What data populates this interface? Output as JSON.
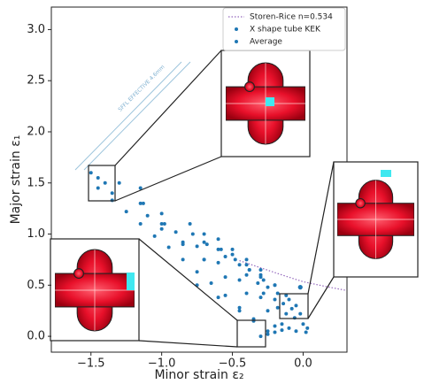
{
  "chart_data": {
    "type": "scatter",
    "xlabel": "Minor strain ε₂",
    "ylabel": "Major strain ε₁",
    "xlim": [
      -1.78,
      0.31
    ],
    "ylim": [
      -0.155,
      3.22
    ],
    "xticks": [
      {
        "value": -1.5,
        "label": "−1.5"
      },
      {
        "value": -1.0,
        "label": "−1.0"
      },
      {
        "value": -0.5,
        "label": "−0.5"
      },
      {
        "value": 0,
        "label": "0.0"
      }
    ],
    "yticks": [
      {
        "value": 0,
        "label": "0.0"
      },
      {
        "value": 0.5,
        "label": "0.5"
      },
      {
        "value": 1.0,
        "label": "1.0"
      },
      {
        "value": 1.5,
        "label": "1.5"
      },
      {
        "value": 2.0,
        "label": "2.0"
      },
      {
        "value": 2.5,
        "label": "2.5"
      },
      {
        "value": 3.0,
        "label": "3.0"
      }
    ],
    "grid": false,
    "legend": "upper right",
    "annotation": "SFFL EFFECTIVE 4.6mm",
    "series": [
      {
        "name": "Storen-Rice n=0.534",
        "type": "line",
        "color": "#9467bd",
        "x": [
          -0.45,
          -0.3,
          -0.15,
          0,
          0.15,
          0.3
        ],
        "y": [
          0.74,
          0.67,
          0.6,
          0.534,
          0.49,
          0.45
        ]
      },
      {
        "name": "X shape tube KEK",
        "type": "scatter",
        "color": "#1f77b4",
        "x": [
          -1.45,
          -1.35,
          -1.25,
          -1.15,
          -1.05,
          -0.95,
          -0.85,
          -0.75,
          -0.65,
          -0.55,
          -0.45,
          -0.35,
          -0.25,
          -1.3,
          -1.15,
          -1.0,
          -0.85,
          -0.7,
          -0.55,
          -0.4,
          -0.25,
          -0.15,
          -1.45,
          -1.4,
          -1.5,
          -1.35,
          -1.15,
          -1.13,
          -1.1,
          -1.0,
          -0.85,
          -0.7,
          -1.0,
          -0.98,
          -0.9,
          -0.75,
          -0.6,
          -0.45,
          -0.3,
          -0.8,
          -0.78,
          -0.7,
          -0.55,
          -0.4,
          -0.28,
          -0.18,
          -0.7,
          -0.68,
          -0.6,
          -0.45,
          -0.32,
          -0.2,
          -0.12,
          -0.6,
          -0.58,
          -0.5,
          -0.38,
          -0.25,
          -0.14,
          -0.06,
          -0.5,
          -0.48,
          -0.4,
          -0.3,
          -0.18,
          -0.08,
          0.0,
          -0.4,
          -0.38,
          -0.3,
          -0.2,
          -0.1,
          -0.02,
          0.03,
          -0.3,
          -0.28,
          -0.2,
          -0.12,
          -0.05,
          -0.3,
          -0.25,
          -0.2,
          -0.15,
          -0.1,
          -0.05,
          0.02,
          -0.75,
          -0.6,
          -0.45,
          -0.35,
          -0.2
        ],
        "y": [
          1.45,
          1.33,
          1.22,
          1.1,
          0.98,
          0.87,
          0.75,
          0.63,
          0.52,
          0.4,
          0.28,
          0.17,
          0.05,
          1.5,
          1.3,
          1.1,
          0.92,
          0.75,
          0.58,
          0.42,
          0.25,
          0.12,
          1.55,
          1.5,
          1.6,
          1.4,
          1.45,
          1.3,
          1.18,
          1.05,
          0.9,
          0.75,
          1.2,
          1.1,
          1.02,
          0.88,
          0.72,
          0.55,
          0.38,
          1.1,
          1.0,
          0.92,
          0.78,
          0.6,
          0.42,
          0.28,
          1.0,
          0.9,
          0.85,
          0.7,
          0.52,
          0.36,
          0.22,
          0.95,
          0.85,
          0.8,
          0.65,
          0.48,
          0.32,
          0.18,
          0.85,
          0.75,
          0.7,
          0.58,
          0.42,
          0.27,
          0.12,
          0.75,
          0.65,
          0.6,
          0.5,
          0.36,
          0.22,
          0.08,
          0.65,
          0.55,
          0.5,
          0.4,
          0.3,
          0.0,
          0.02,
          0.04,
          0.06,
          0.08,
          0.05,
          0.04,
          0.5,
          0.38,
          0.25,
          0.15,
          0.1
        ]
      },
      {
        "name": "Average",
        "type": "scatter",
        "color": "#1f77b4",
        "x": [
          -0.02
        ],
        "y": [
          0.48
        ]
      }
    ]
  }
}
